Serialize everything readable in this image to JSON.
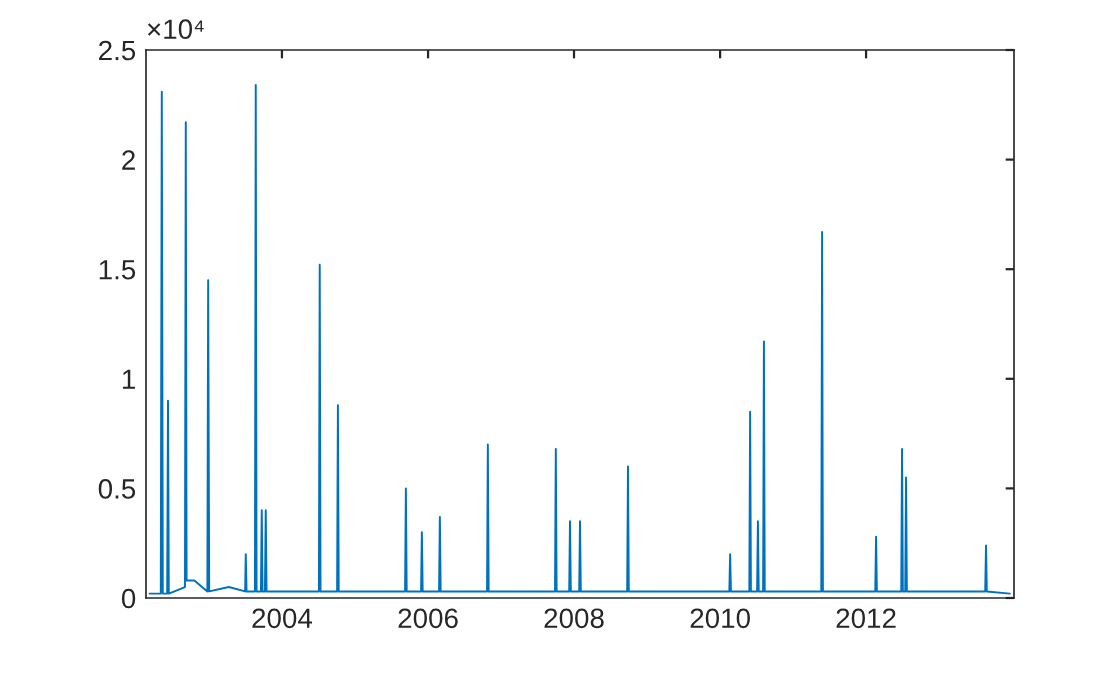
{
  "chart_data": {
    "type": "line",
    "x": [
      "2002-03-10",
      "2002-05-05",
      "2002-05-10",
      "2002-05-15",
      "2002-06-06",
      "2002-06-10",
      "2002-06-14",
      "2002-09-03",
      "2002-09-07",
      "2002-09-11",
      "2002-10-20",
      "2002-12-24",
      "2002-12-28",
      "2003-01-02",
      "2003-04-10",
      "2003-07-01",
      "2003-07-04",
      "2003-07-08",
      "2003-08-19",
      "2003-08-23",
      "2003-08-27",
      "2003-09-18",
      "2003-09-22",
      "2003-09-26",
      "2003-10-08",
      "2003-10-12",
      "2003-10-16",
      "2004-02-01",
      "2004-07-04",
      "2004-07-08",
      "2004-07-12",
      "2004-10-03",
      "2004-10-07",
      "2004-10-11",
      "2005-03-01",
      "2005-09-08",
      "2005-09-12",
      "2005-09-16",
      "2005-11-27",
      "2005-12-01",
      "2005-12-05",
      "2006-02-25",
      "2006-03-01",
      "2006-03-05",
      "2006-10-23",
      "2006-10-27",
      "2006-10-31",
      "2007-09-28",
      "2007-10-02",
      "2007-10-06",
      "2007-12-08",
      "2007-12-12",
      "2007-12-16",
      "2008-01-27",
      "2008-01-31",
      "2008-02-04",
      "2008-09-23",
      "2008-09-27",
      "2008-10-01",
      "2009-06-01",
      "2010-02-16",
      "2010-02-20",
      "2010-02-24",
      "2010-05-27",
      "2010-05-31",
      "2010-06-04",
      "2010-07-05",
      "2010-07-09",
      "2010-07-13",
      "2010-08-04",
      "2010-08-08",
      "2010-08-12",
      "2011-05-22",
      "2011-05-26",
      "2011-05-30",
      "2012-02-16",
      "2012-02-20",
      "2012-02-24",
      "2012-06-25",
      "2012-06-29",
      "2012-07-03",
      "2012-07-15",
      "2012-07-19",
      "2012-07-23",
      "2013-08-19",
      "2013-08-23",
      "2013-08-27",
      "2013-12-20"
    ],
    "series": [
      {
        "color": "#0072bd",
        "values": [
          0.02,
          0.02,
          2.31,
          0.02,
          0.02,
          0.9,
          0.02,
          0.05,
          2.17,
          0.08,
          0.08,
          0.03,
          1.45,
          0.03,
          0.05,
          0.03,
          0.2,
          0.03,
          0.03,
          2.34,
          0.03,
          0.03,
          0.4,
          0.03,
          0.03,
          0.4,
          0.03,
          0.03,
          0.03,
          1.52,
          0.03,
          0.03,
          0.88,
          0.03,
          0.03,
          0.03,
          0.5,
          0.03,
          0.03,
          0.3,
          0.03,
          0.03,
          0.37,
          0.03,
          0.03,
          0.7,
          0.03,
          0.03,
          0.68,
          0.03,
          0.03,
          0.35,
          0.03,
          0.03,
          0.35,
          0.03,
          0.03,
          0.6,
          0.03,
          0.03,
          0.03,
          0.2,
          0.03,
          0.03,
          0.85,
          0.03,
          0.03,
          0.35,
          0.03,
          0.03,
          1.17,
          0.03,
          0.03,
          1.67,
          0.03,
          0.03,
          0.28,
          0.03,
          0.03,
          0.68,
          0.03,
          0.03,
          0.55,
          0.03,
          0.03,
          0.24,
          0.03,
          0.02
        ]
      }
    ],
    "xlim": [
      "2002-02-20",
      "2014-01-10"
    ],
    "xticks": [
      {
        "value": "2004-01-01",
        "label": "2004"
      },
      {
        "value": "2006-01-01",
        "label": "2006"
      },
      {
        "value": "2008-01-01",
        "label": "2008"
      },
      {
        "value": "2010-01-01",
        "label": "2010"
      },
      {
        "value": "2012-01-01",
        "label": "2012"
      }
    ],
    "ylim": [
      0,
      2.5
    ],
    "yticks": [
      0,
      0.5,
      1,
      1.5,
      2,
      2.5
    ],
    "grid": false,
    "legend": false,
    "annotations": [
      "×10⁴"
    ]
  }
}
